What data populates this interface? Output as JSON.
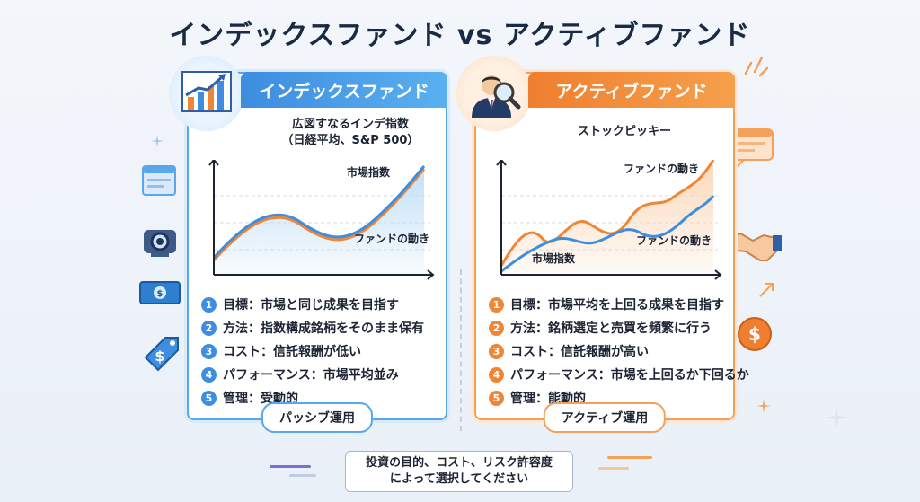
{
  "title": "インデックスファンド vs アクティブファンド",
  "index_card": {
    "header": "インデックスファンド",
    "subtitle_line1": "広図すなるインデ指数",
    "subtitle_line2": "（日経平均、S&P 500）",
    "chart_labels": {
      "market": "市場指数",
      "fund": "ファンドの動き"
    },
    "items": [
      {
        "num": "1",
        "text": "目標：市場と同じ成果を目指す"
      },
      {
        "num": "2",
        "text": "方法：指数構成銘柄をそのまま保有"
      },
      {
        "num": "3",
        "text": "コスト：信託報酬が低い"
      },
      {
        "num": "4",
        "text": "パフォーマンス：市場平均並み"
      },
      {
        "num": "5",
        "text": "管理：受動的"
      }
    ],
    "footer": "パッシブ運用",
    "colors": {
      "accent": "#3d8de0",
      "market_line": "#3d8de0",
      "fund_line": "#ef8636"
    }
  },
  "active_card": {
    "header": "アクティブファンド",
    "subtitle": "ストックピッキー",
    "chart_labels": {
      "fund_top": "ファンドの動き",
      "fund_mid": "ファンドの動き",
      "market": "市場指数"
    },
    "items": [
      {
        "num": "1",
        "text": "目標：市場平均を上回る成果を目指す"
      },
      {
        "num": "2",
        "text": "方法：銘柄選定と売買を頻繁に行う"
      },
      {
        "num": "3",
        "text": "コスト：信託報酬が高い"
      },
      {
        "num": "4",
        "text": "パフォーマンス：市場を上回るか下回るか"
      },
      {
        "num": "5",
        "text": "管理：能動的"
      }
    ],
    "footer": "アクティブ運用",
    "colors": {
      "accent": "#ef8636",
      "market_line": "#3d8de0",
      "fund_line": "#ef8636"
    }
  },
  "bottom_note_line1": "投資の目的、コスト、リスク許容度",
  "bottom_note_line2": "によって選択してください",
  "icons": {
    "index_badge": "rising-bar-chart-icon",
    "active_badge": "businessman-magnifier-icon",
    "left_deco": [
      "browser-window-icon",
      "camera-icon",
      "banknote-icon",
      "dollar-tag-icon"
    ],
    "right_deco": [
      "chat-bubble-icon",
      "handshake-icon",
      "dollar-coin-icon"
    ]
  }
}
